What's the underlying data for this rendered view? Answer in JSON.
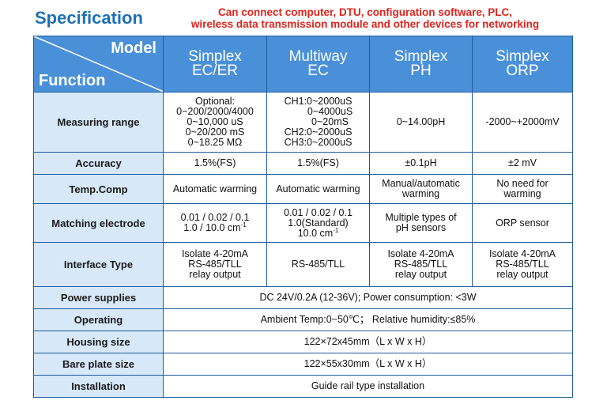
{
  "page": {
    "title": "Specification",
    "note_line1": "Can connect computer, DTU, configuration software, PLC,",
    "note_line2": "wireless data transmission module and other devices for networking"
  },
  "table": {
    "corner_model": "Model",
    "corner_function": "Function",
    "models": [
      {
        "line1": "Simplex",
        "line2": "EC/ER"
      },
      {
        "line1": "Multiway",
        "line2": "EC"
      },
      {
        "line1": "Simplex",
        "line2": "PH"
      },
      {
        "line1": "Simplex",
        "line2": "ORP"
      }
    ],
    "measuring_range": {
      "label": "Measuring range",
      "ec_er": [
        "Optional:",
        "0~200/2000/4000",
        "0~10,000 uS",
        "0~20/200 mS",
        "0~18.25 MΩ"
      ],
      "multiway": [
        "CH1:0~2000uS",
        "0~4000uS",
        "0~20mS",
        "CH2:0~2000uS",
        "CH3:0~2000uS"
      ],
      "ph": "0~14.00pH",
      "orp": "-2000~+2000mV"
    },
    "accuracy": {
      "label": "Accuracy",
      "ec_er": "1.5%(FS)",
      "multiway": "1.5%(FS)",
      "ph": "±0.1pH",
      "orp": "±2 mV"
    },
    "temp_comp": {
      "label": "Temp.Comp",
      "ec_er": "Automatic warming",
      "multiway": "Automatic warming",
      "ph": [
        "Manual/automatic",
        "warming"
      ],
      "orp": [
        "No need for",
        "warming"
      ]
    },
    "electrode": {
      "label": "Matching electrode",
      "ec_er": [
        "0.01 / 0.02 / 0.1",
        "1.0 / 10.0 cm",
        "-1"
      ],
      "multiway": [
        "0.01 / 0.02 / 0.1",
        "1.0(Standard)",
        "10.0 cm",
        "-1"
      ],
      "ph": [
        "Multiple types of",
        "pH sensors"
      ],
      "orp": "ORP sensor"
    },
    "interface": {
      "label": "Interface Type",
      "ec_er": [
        "Isolate 4-20mA",
        "RS-485/TLL",
        "relay output"
      ],
      "multiway": "RS-485/TLL",
      "ph": [
        "Isolate 4-20mA",
        "RS-485/TLL",
        "relay output"
      ],
      "orp": [
        "Isolate 4-20mA",
        "RS-485/TLL",
        "relay output"
      ]
    },
    "power": {
      "label": "Power supplies",
      "value": "DC 24V/0.2A (12-36V); Power consumption: <3W"
    },
    "operating": {
      "label": "Operating",
      "value": "Ambient Temp:0~50℃； Relative humidity:≤85%"
    },
    "housing": {
      "label": "Housing size",
      "value": "122×72x45mm（L x W x H）"
    },
    "bare_plate": {
      "label": "Bare plate size",
      "value": "122×55x30mm（L x W x H）"
    },
    "installation": {
      "label": "Installation",
      "value": "Guide rail type installation"
    },
    "colors": {
      "header_bg": "#4a90d9",
      "label_bg": "#d7e8f8",
      "title": "#1f6fb5",
      "note": "#e0231b",
      "border": "#1f5c9e"
    }
  }
}
